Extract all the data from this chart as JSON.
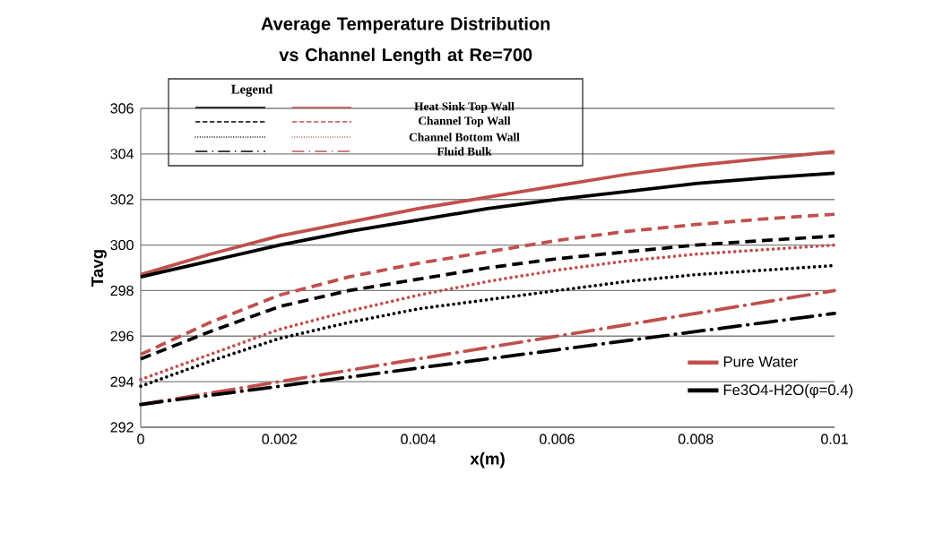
{
  "chart_data": {
    "type": "line",
    "title": "Average Temperature Distribution vs Channel Length at Re=700",
    "xlabel": "x(m)",
    "ylabel": "Tavg",
    "x": [
      0,
      0.001,
      0.002,
      0.003,
      0.004,
      0.005,
      0.006,
      0.007,
      0.008,
      0.009,
      0.01
    ],
    "series": [
      {
        "name": "Pure Water",
        "color": "#c0504d",
        "line_style": "solid",
        "values": [
          298.7,
          299.6,
          300.4,
          301.0,
          301.6,
          302.1,
          302.6,
          303.1,
          303.5,
          303.8,
          304.1
        ]
      },
      {
        "name": "Fe3O4-H2O(φ=0.4)",
        "color": "#000000",
        "line_style": "solid",
        "values": [
          298.6,
          299.3,
          300.0,
          300.6,
          301.1,
          301.6,
          302.0,
          302.35,
          302.7,
          302.95,
          303.15
        ]
      },
      {
        "color": "#c0504d",
        "line_style": "dashed",
        "values": [
          295.2,
          296.6,
          297.8,
          298.6,
          299.2,
          299.7,
          300.2,
          300.6,
          300.9,
          301.15,
          301.35
        ]
      },
      {
        "color": "#000000",
        "line_style": "dashed",
        "values": [
          295.0,
          296.2,
          297.3,
          298.0,
          298.5,
          299.0,
          299.4,
          299.7,
          300.0,
          300.2,
          300.4
        ]
      },
      {
        "color": "#c0504d",
        "line_style": "dotted",
        "values": [
          294.1,
          295.2,
          296.3,
          297.1,
          297.8,
          298.4,
          298.9,
          299.3,
          299.6,
          299.8,
          300.0
        ]
      },
      {
        "color": "#000000",
        "line_style": "dotted",
        "values": [
          293.8,
          294.9,
          295.9,
          296.6,
          297.2,
          297.6,
          298.0,
          298.4,
          298.7,
          298.9,
          299.1
        ]
      },
      {
        "color": "#c0504d",
        "line_style": "dashdot",
        "values": [
          293.0,
          293.5,
          294.0,
          294.5,
          295.0,
          295.5,
          296.0,
          296.5,
          297.0,
          297.5,
          298.0
        ]
      },
      {
        "color": "#000000",
        "line_style": "dashdot",
        "values": [
          293.0,
          293.4,
          293.8,
          294.2,
          294.6,
          295.0,
          295.4,
          295.8,
          296.2,
          296.6,
          297.0
        ]
      }
    ],
    "annotations": [
      "Legend",
      "Heat Sink Top Wall",
      "Channel Top Wall",
      "Channel Bottom Wall",
      "Fluid Bulk"
    ],
    "xlim": [
      0,
      0.01
    ],
    "ylim": [
      292,
      306
    ],
    "xticks": [
      0,
      0.002,
      0.004,
      0.006,
      0.008,
      0.01
    ],
    "yticks": [
      292,
      294,
      296,
      298,
      300,
      302,
      304,
      306
    ],
    "grid": "y",
    "legend": "bottom right"
  }
}
